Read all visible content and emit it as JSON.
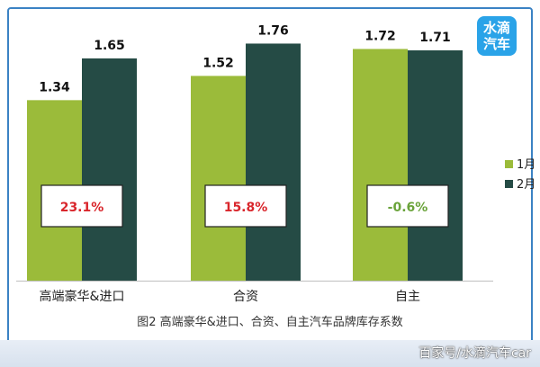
{
  "chart_data": {
    "type": "bar",
    "title": "图2 高端豪华&进口、合资、自主汽车品牌库存系数",
    "categories": [
      "高端豪华&进口",
      "合资",
      "自主"
    ],
    "series": [
      {
        "name": "1月",
        "values": [
          1.34,
          1.52,
          1.72
        ],
        "color": "#9bbb3a"
      },
      {
        "name": "2月",
        "values": [
          1.65,
          1.76,
          1.71
        ],
        "color": "#254b45"
      }
    ],
    "value_labels": [
      [
        "1.34",
        "1.52",
        "1.72"
      ],
      [
        "1.65",
        "1.76",
        "1.71"
      ]
    ],
    "change_labels": [
      "23.1%",
      "15.8%",
      "-0.6%"
    ],
    "change_colors": [
      "#d9262c",
      "#d9262c",
      "#6aa33a"
    ],
    "ylim": [
      0,
      1.95
    ],
    "legend_position": "right",
    "grid": false
  },
  "watermark": {
    "logo_line1": "水滴",
    "logo_line2": "汽车",
    "footer_text": "百家号/水滴汽车car"
  }
}
